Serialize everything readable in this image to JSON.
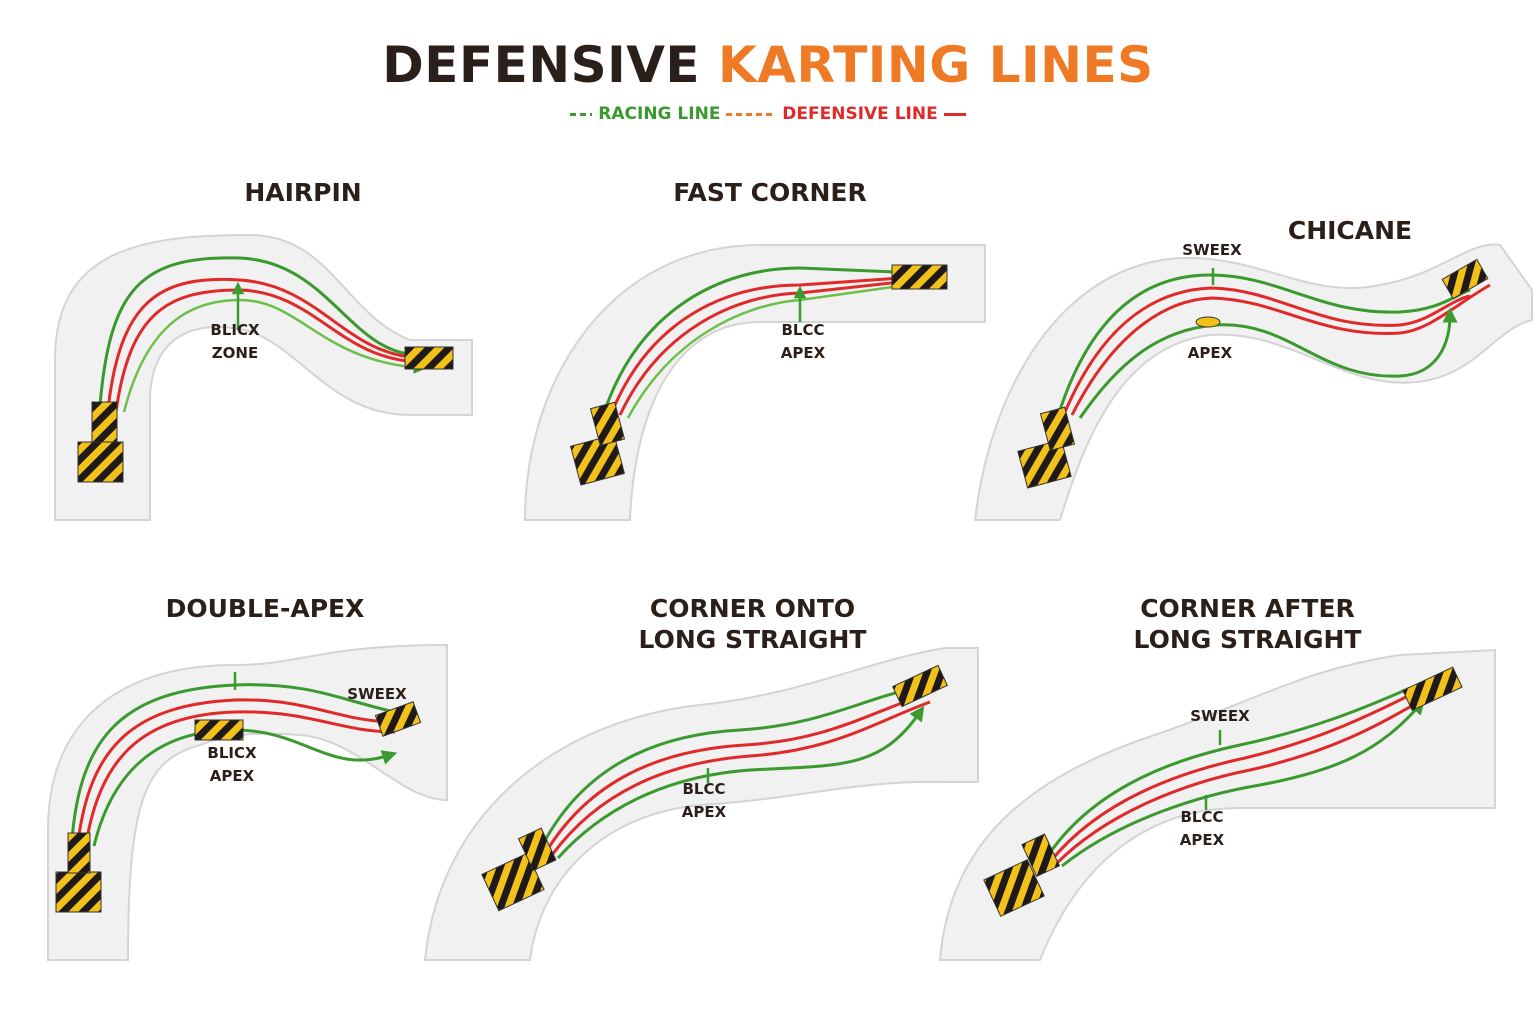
{
  "title": {
    "part1": "DEFENSIVE",
    "part2": "KARTING LINES"
  },
  "legend": {
    "racing_line": "RACING LINE",
    "defensive_line": "DEFENSIVE LINE"
  },
  "colors": {
    "racing": "#3a9a2e",
    "defensive": "#e02a2a",
    "accent": "#ee7a26",
    "track": "#f1f1f1",
    "hazard": "#f3c21a"
  },
  "panels": {
    "hairpin": {
      "title": "HAIRPIN",
      "label1": "BLICX",
      "label2": "ZONE"
    },
    "fast_corner": {
      "title": "FAST CORNER",
      "label1": "BLCC",
      "label2": "APEX"
    },
    "chicane": {
      "title": "CHICANE",
      "sweep": "SWEEX",
      "apex": "APEX"
    },
    "double_apex": {
      "title": "DOUBLE-APEX",
      "sweep": "SWEEX",
      "label1": "BLICX",
      "label2": "APEX"
    },
    "corner_onto": {
      "title_line1": "CORNER ONTO",
      "title_line2": "LONG STRAIGHT",
      "label1": "BLCC",
      "label2": "APEX"
    },
    "corner_after": {
      "title_line1": "CORNER AFTER",
      "title_line2": "LONG STRAIGHT",
      "sweep": "SWEEX",
      "label1": "BLCC",
      "label2": "APEX"
    }
  }
}
